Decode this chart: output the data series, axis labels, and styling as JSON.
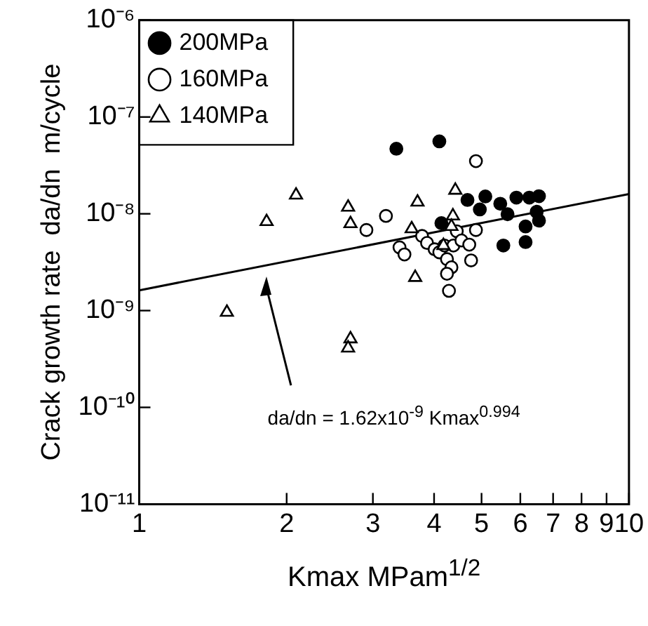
{
  "chart_data": {
    "type": "scatter",
    "xlabel": "Kmax  MPam$^{1/2}$",
    "ylabel": "Crack growth rate  da/dn  m/cycle",
    "log": "xy",
    "xlim": [
      1,
      10
    ],
    "xticks": [
      1,
      2,
      3,
      4,
      5,
      6,
      7,
      8,
      9,
      10
    ],
    "ylim": [
      1e-11,
      1e-06
    ],
    "yticks": [
      {
        "value": 1e-11,
        "label": "10⁻¹¹"
      },
      {
        "value": 1e-10,
        "label": "10⁻¹⁰"
      },
      {
        "value": 1e-09,
        "label": "10⁻⁹"
      },
      {
        "value": 1e-08,
        "label": "10⁻⁸"
      },
      {
        "value": 1e-07,
        "label": "10⁻⁷"
      },
      {
        "value": 1e-06,
        "label": "10⁻⁶"
      }
    ],
    "grid": false,
    "legend": "top left",
    "series": [
      {
        "name": "200MPa",
        "color": "#000000",
        "marker": "circle",
        "x": [
          3.35,
          4.1,
          4.68,
          5.09,
          4.96,
          5.46,
          5.65,
          5.89,
          6.26,
          6.55,
          6.48,
          6.55,
          6.15,
          6.15,
          5.54,
          4.14
        ],
        "values": [
          4.7e-08,
          5.6e-08,
          1.39e-08,
          1.51e-08,
          1.11e-08,
          1.27e-08,
          9.9e-09,
          1.47e-08,
          1.47e-08,
          1.52e-08,
          1.05e-08,
          8.5e-09,
          7.4e-09,
          5.1e-09,
          4.7e-09,
          8e-09
        ]
      },
      {
        "name": "160MPa",
        "color": "#ffffff",
        "marker": "circle",
        "x": [
          4.87,
          3.19,
          2.91,
          3.4,
          3.48,
          3.78,
          3.87,
          4.01,
          4.1,
          4.2,
          4.25,
          4.38,
          4.45,
          4.55,
          4.34,
          4.25,
          4.29,
          4.72,
          4.76,
          4.87
        ],
        "values": [
          3.5e-08,
          9.5e-09,
          6.8e-09,
          4.5e-09,
          3.8e-09,
          5.9e-09,
          5e-09,
          4.3e-09,
          4e-09,
          4.7e-09,
          3.4e-09,
          4.7e-09,
          6.6e-09,
          5.3e-09,
          2.8e-09,
          2.4e-09,
          1.6e-09,
          4.8e-09,
          3.3e-09,
          6.8e-09
        ]
      },
      {
        "name": "140MPa",
        "color": "#ffffff",
        "marker": "triangle",
        "x": [
          1.51,
          1.82,
          2.09,
          2.67,
          2.7,
          2.7,
          2.67,
          3.7,
          3.6,
          3.66,
          4.42,
          4.37,
          4.34,
          4.18
        ],
        "values": [
          9.6e-10,
          8.3e-09,
          1.56e-08,
          1.17e-08,
          7.9e-09,
          5.1e-10,
          4.1e-10,
          1.32e-08,
          7e-09,
          2.2e-09,
          1.75e-08,
          9.5e-09,
          7.4e-09,
          4.7e-09
        ]
      },
      {
        "type": "line",
        "color": "#000000",
        "marker": "none",
        "line_style": "solid",
        "x": [
          1,
          10
        ],
        "values": [
          1.62e-09,
          1.6e-08
        ]
      }
    ],
    "annotations": [
      "da/dn = 1.62x10$^{-9}$ Kmax$^{0.994}$"
    ]
  }
}
